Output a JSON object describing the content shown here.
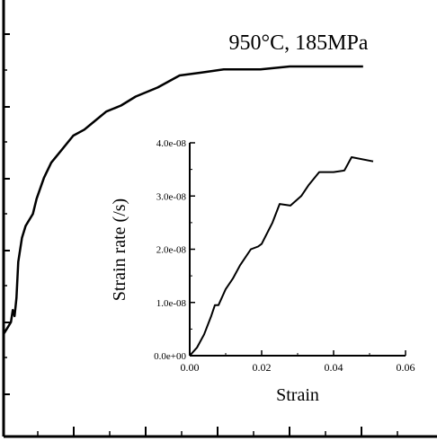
{
  "chart_data": [
    {
      "type": "line",
      "title": "950°C, 185MPa",
      "series": [
        {
          "points": [
            [
              0,
              0.12
            ],
            [
              0.01,
              0.14
            ],
            [
              0.02,
              0.16
            ],
            [
              0.025,
              0.2
            ],
            [
              0.03,
              0.18
            ],
            [
              0.035,
              0.24
            ],
            [
              0.04,
              0.36
            ],
            [
              0.05,
              0.44
            ],
            [
              0.06,
              0.48
            ],
            [
              0.08,
              0.52
            ],
            [
              0.09,
              0.57
            ],
            [
              0.11,
              0.64
            ],
            [
              0.13,
              0.69
            ],
            [
              0.15,
              0.72
            ],
            [
              0.19,
              0.78
            ],
            [
              0.22,
              0.8
            ],
            [
              0.24,
              0.82
            ],
            [
              0.28,
              0.86
            ],
            [
              0.32,
              0.88
            ],
            [
              0.36,
              0.91
            ],
            [
              0.42,
              0.94
            ],
            [
              0.48,
              0.98
            ],
            [
              0.54,
              0.99
            ],
            [
              0.6,
              1.0
            ],
            [
              0.7,
              1.0
            ],
            [
              0.78,
              1.01
            ],
            [
              0.85,
              1.01
            ],
            [
              0.98,
              1.01
            ]
          ]
        }
      ],
      "grid": false
    },
    {
      "type": "line",
      "xlabel": "Strain",
      "ylabel": "Strain rate (/s)",
      "xlim": [
        0,
        0.06
      ],
      "ylim": [
        0,
        4e-08
      ],
      "xticks": [
        "0.00",
        "0.02",
        "0.04",
        "0.06"
      ],
      "yticks": [
        "0.0e+00",
        "1.0e-08",
        "2.0e-08",
        "3.0e-08",
        "4.0e-08"
      ],
      "grid": false,
      "series": [
        {
          "x": [
            0.0,
            0.002,
            0.004,
            0.006,
            0.007,
            0.008,
            0.01,
            0.012,
            0.014,
            0.017,
            0.019,
            0.02,
            0.023,
            0.025,
            0.028,
            0.031,
            0.033,
            0.036,
            0.04,
            0.043,
            0.045,
            0.051
          ],
          "y": [
            0.0,
            1.5e-09,
            4e-09,
            7.5e-09,
            9.5e-09,
            9.5e-09,
            1.25e-08,
            1.45e-08,
            1.7e-08,
            2e-08,
            2.05e-08,
            2.1e-08,
            2.5e-08,
            2.85e-08,
            2.82e-08,
            3e-08,
            3.2e-08,
            3.45e-08,
            3.45e-08,
            3.48e-08,
            3.73e-08,
            3.65e-08
          ]
        }
      ]
    }
  ]
}
